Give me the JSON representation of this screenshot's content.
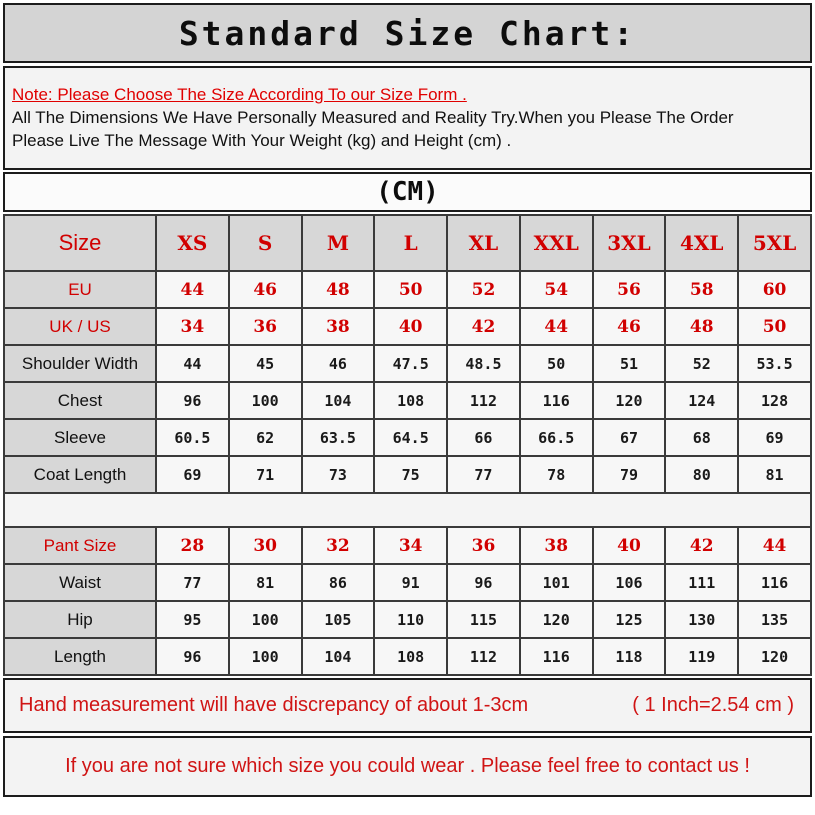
{
  "title": "Standard Size Chart:",
  "note": {
    "line1": "Note: Please Choose The Size According To our Size Form .",
    "line2": "All The Dimensions We Have Personally Measured and Reality Try.When you Please The Order",
    "line3": "Please Live The Message With Your Weight (kg) and Height (cm) ."
  },
  "unit_label": "(CM)",
  "table": {
    "header": {
      "label": "Size",
      "sizes": [
        "XS",
        "S",
        "M",
        "L",
        "XL",
        "XXL",
        "3XL",
        "4XL",
        "5XL"
      ]
    },
    "rows": [
      {
        "label": "EU",
        "style": "red",
        "values": [
          "44",
          "46",
          "48",
          "50",
          "52",
          "54",
          "56",
          "58",
          "60"
        ]
      },
      {
        "label": "UK / US",
        "style": "red",
        "values": [
          "34",
          "36",
          "38",
          "40",
          "42",
          "44",
          "46",
          "48",
          "50"
        ]
      },
      {
        "label": "Shoulder Width",
        "style": "black",
        "values": [
          "44",
          "45",
          "46",
          "47.5",
          "48.5",
          "50",
          "51",
          "52",
          "53.5"
        ]
      },
      {
        "label": "Chest",
        "style": "black",
        "values": [
          "96",
          "100",
          "104",
          "108",
          "112",
          "116",
          "120",
          "124",
          "128"
        ]
      },
      {
        "label": "Sleeve",
        "style": "black",
        "values": [
          "60.5",
          "62",
          "63.5",
          "64.5",
          "66",
          "66.5",
          "67",
          "68",
          "69"
        ]
      },
      {
        "label": "Coat Length",
        "style": "black",
        "values": [
          "69",
          "71",
          "73",
          "75",
          "77",
          "78",
          "79",
          "80",
          "81"
        ]
      },
      {
        "label": "",
        "style": "spacer",
        "values": []
      },
      {
        "label": "Pant Size",
        "style": "red",
        "values": [
          "28",
          "30",
          "32",
          "34",
          "36",
          "38",
          "40",
          "42",
          "44"
        ]
      },
      {
        "label": "Waist",
        "style": "black",
        "values": [
          "77",
          "81",
          "86",
          "91",
          "96",
          "101",
          "106",
          "111",
          "116"
        ]
      },
      {
        "label": "Hip",
        "style": "black",
        "values": [
          "95",
          "100",
          "105",
          "110",
          "115",
          "120",
          "125",
          "130",
          "135"
        ]
      },
      {
        "label": "Length",
        "style": "black",
        "values": [
          "96",
          "100",
          "104",
          "108",
          "112",
          "116",
          "118",
          "119",
          "120"
        ]
      }
    ]
  },
  "footer": {
    "discrepancy": "Hand measurement will have discrepancy of about 1-3cm",
    "inch_note": "( 1 Inch=2.54 cm )",
    "contact": "If you are not sure which size you could wear . Please feel free to contact us !"
  },
  "colors": {
    "note_red": "#e00000",
    "table_red": "#d10000",
    "footer_red": "#d01414",
    "header_cell_bg": "#d7d7d7",
    "title_bar_bg": "#d4d4d4",
    "value_cell_bg": "#f7f7f7",
    "panel_bg": "#f3f3f3",
    "border": "#1c1c1c"
  }
}
